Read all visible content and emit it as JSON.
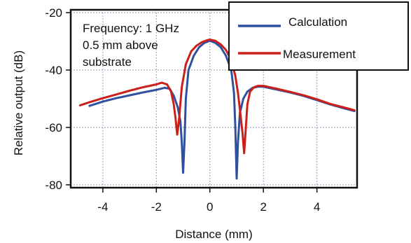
{
  "chart_data": {
    "type": "line",
    "title": "",
    "xlabel": "Distance (mm)",
    "ylabel": "Relative output (dB)",
    "xlim": [
      -5.2,
      5.5
    ],
    "ylim": [
      -81,
      -19
    ],
    "xticks": [
      -4,
      -2,
      0,
      2,
      4
    ],
    "yticks": [
      -20,
      -40,
      -60,
      -80
    ],
    "xtick_labels": [
      "-4",
      "-2",
      "0",
      "2",
      "4"
    ],
    "ytick_labels": [
      "-20",
      "-40",
      "-60",
      "-80"
    ],
    "grid": true,
    "legend_position": "top-right",
    "annotation_lines": [
      "Frequency: 1 GHz",
      "0.5 mm above",
      "substrate"
    ],
    "series": [
      {
        "name": "Calculation",
        "color": "#2f4f9f",
        "points": [
          [
            -4.5,
            -52.5
          ],
          [
            -4.0,
            -51.0
          ],
          [
            -3.5,
            -49.8
          ],
          [
            -3.0,
            -48.8
          ],
          [
            -2.5,
            -47.8
          ],
          [
            -2.0,
            -46.9
          ],
          [
            -1.7,
            -46.2
          ],
          [
            -1.5,
            -46.5
          ],
          [
            -1.35,
            -49.0
          ],
          [
            -1.2,
            -53.0
          ],
          [
            -1.1,
            -58.0
          ],
          [
            -1.05,
            -65.0
          ],
          [
            -1.0,
            -75.8
          ],
          [
            -0.95,
            -65.0
          ],
          [
            -0.9,
            -50.0
          ],
          [
            -0.8,
            -40.0
          ],
          [
            -0.6,
            -35.0
          ],
          [
            -0.4,
            -32.0
          ],
          [
            -0.2,
            -30.5
          ],
          [
            0.0,
            -29.8
          ],
          [
            0.2,
            -30.5
          ],
          [
            0.4,
            -32.0
          ],
          [
            0.6,
            -35.0
          ],
          [
            0.8,
            -40.0
          ],
          [
            0.9,
            -48.0
          ],
          [
            0.95,
            -60.0
          ],
          [
            1.0,
            -77.8
          ],
          [
            1.05,
            -65.0
          ],
          [
            1.12,
            -55.0
          ],
          [
            1.25,
            -50.0
          ],
          [
            1.4,
            -47.5
          ],
          [
            1.6,
            -46.2
          ],
          [
            1.8,
            -45.8
          ],
          [
            2.0,
            -45.8
          ],
          [
            2.5,
            -46.8
          ],
          [
            3.0,
            -47.8
          ],
          [
            3.5,
            -49.0
          ],
          [
            4.0,
            -50.5
          ],
          [
            4.5,
            -52.0
          ],
          [
            5.0,
            -53.3
          ],
          [
            5.4,
            -54.3
          ]
        ]
      },
      {
        "name": "Measurement",
        "color": "#cc1f1a",
        "points": [
          [
            -4.85,
            -52.3
          ],
          [
            -4.5,
            -51.2
          ],
          [
            -4.0,
            -49.8
          ],
          [
            -3.5,
            -48.5
          ],
          [
            -3.0,
            -47.2
          ],
          [
            -2.5,
            -46.0
          ],
          [
            -2.0,
            -45.0
          ],
          [
            -1.8,
            -44.4
          ],
          [
            -1.6,
            -45.0
          ],
          [
            -1.45,
            -47.5
          ],
          [
            -1.35,
            -52.0
          ],
          [
            -1.28,
            -57.0
          ],
          [
            -1.22,
            -62.5
          ],
          [
            -1.15,
            -57.0
          ],
          [
            -1.05,
            -46.0
          ],
          [
            -0.9,
            -38.0
          ],
          [
            -0.7,
            -33.5
          ],
          [
            -0.5,
            -31.5
          ],
          [
            -0.3,
            -30.3
          ],
          [
            -0.1,
            -29.6
          ],
          [
            0.0,
            -29.4
          ],
          [
            0.2,
            -29.8
          ],
          [
            0.4,
            -31.0
          ],
          [
            0.6,
            -33.0
          ],
          [
            0.8,
            -36.5
          ],
          [
            0.95,
            -42.0
          ],
          [
            1.05,
            -48.0
          ],
          [
            1.15,
            -56.0
          ],
          [
            1.22,
            -62.0
          ],
          [
            1.28,
            -69.0
          ],
          [
            1.33,
            -62.0
          ],
          [
            1.4,
            -52.0
          ],
          [
            1.5,
            -47.5
          ],
          [
            1.65,
            -46.0
          ],
          [
            1.8,
            -45.5
          ],
          [
            2.0,
            -45.5
          ],
          [
            2.5,
            -46.5
          ],
          [
            3.0,
            -47.6
          ],
          [
            3.5,
            -48.8
          ],
          [
            4.0,
            -50.2
          ],
          [
            4.5,
            -51.8
          ],
          [
            5.0,
            -53.0
          ],
          [
            5.4,
            -54.0
          ]
        ]
      }
    ]
  }
}
